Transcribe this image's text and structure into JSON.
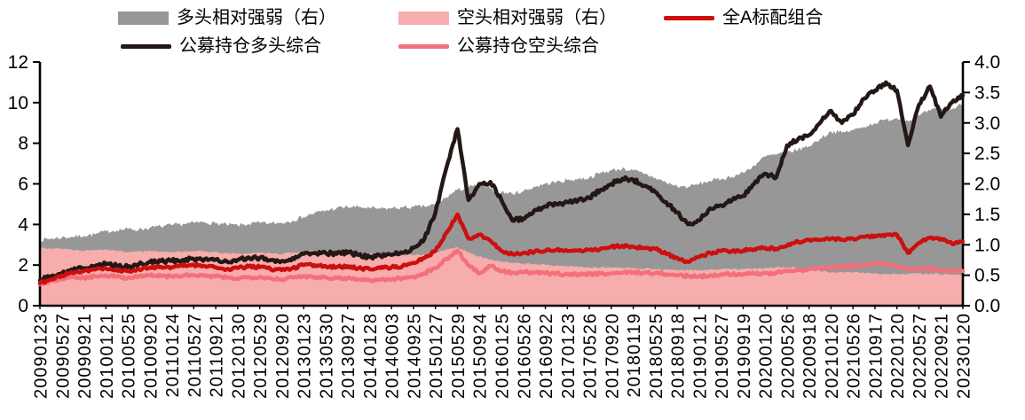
{
  "chart_data": {
    "type": "area+line",
    "title": "",
    "legend": {
      "position": "top",
      "items": [
        {
          "label": "多头相对强弱（右）",
          "swatch": "area",
          "color": "#979797"
        },
        {
          "label": "空头相对强弱（右）",
          "swatch": "area",
          "color": "#F6ADAB"
        },
        {
          "label": "全A标配组合",
          "swatch": "line",
          "color": "#CC0F0F"
        },
        {
          "label": "公募持仓多头综合",
          "swatch": "line",
          "color": "#231815"
        },
        {
          "label": "公募持仓空头综合",
          "swatch": "line",
          "color": "#F3707B"
        }
      ]
    },
    "left_axis": {
      "min": 0,
      "max": 12,
      "ticks": [
        "0",
        "2",
        "4",
        "6",
        "8",
        "10",
        "12"
      ]
    },
    "right_axis": {
      "min": 0,
      "max": 4,
      "ticks": [
        "0.0",
        "0.5",
        "1.0",
        "1.5",
        "2.0",
        "2.5",
        "3.0",
        "3.5",
        "4.0"
      ]
    },
    "x_tick_labels": [
      "20090123",
      "20090527",
      "20090921",
      "20100121",
      "20100525",
      "20100920",
      "20110124",
      "20110527",
      "20110921",
      "20120130",
      "20120529",
      "20120920",
      "20130123",
      "20130530",
      "20130927",
      "20140128",
      "20140603",
      "20140925",
      "20150127",
      "20150529",
      "20150924",
      "20160125",
      "20160526",
      "20160922",
      "20170123",
      "20170526",
      "20170920",
      "20180119",
      "20180525",
      "20180918",
      "20190121",
      "20190527",
      "20190919",
      "20200120",
      "20200526",
      "20200918",
      "20210120",
      "20210526",
      "20210917",
      "20220120",
      "20220527",
      "20220921",
      "20230120"
    ],
    "series": [
      {
        "name": "多头相对强弱（右）",
        "type": "area",
        "axis": "right",
        "color": "#979797",
        "wiggle": 0.035,
        "values": [
          1.08,
          1.1,
          1.12,
          1.13,
          1.15,
          1.17,
          1.22,
          1.24,
          1.26,
          1.25,
          1.28,
          1.3,
          1.32,
          1.34,
          1.36,
          1.37,
          1.35,
          1.33,
          1.32,
          1.34,
          1.36,
          1.35,
          1.36,
          1.4,
          1.46,
          1.52,
          1.56,
          1.6,
          1.62,
          1.62,
          1.6,
          1.59,
          1.6,
          1.61,
          1.62,
          1.63,
          1.66,
          1.78,
          1.9,
          1.94,
          1.98,
          1.92,
          1.86,
          1.84,
          1.88,
          1.95,
          2.0,
          2.03,
          2.06,
          2.08,
          2.1,
          2.18,
          2.22,
          2.25,
          2.22,
          2.16,
          2.1,
          2.02,
          1.96,
          1.95,
          2.0,
          2.05,
          2.08,
          2.12,
          2.18,
          2.3,
          2.45,
          2.48,
          2.52,
          2.56,
          2.62,
          2.74,
          2.86,
          2.84,
          2.88,
          2.94,
          3.0,
          3.05,
          3.08,
          3.03,
          3.12,
          3.2,
          3.24,
          3.22,
          3.32
        ]
      },
      {
        "name": "空头相对强弱（右）",
        "type": "area",
        "axis": "right",
        "color": "#F6ADAB",
        "wiggle": 0.015,
        "values": [
          0.96,
          0.94,
          0.93,
          0.91,
          0.9,
          0.91,
          0.92,
          0.9,
          0.88,
          0.89,
          0.9,
          0.89,
          0.88,
          0.89,
          0.9,
          0.89,
          0.88,
          0.86,
          0.85,
          0.86,
          0.87,
          0.86,
          0.85,
          0.87,
          0.89,
          0.9,
          0.89,
          0.88,
          0.87,
          0.86,
          0.85,
          0.85,
          0.85,
          0.84,
          0.83,
          0.84,
          0.86,
          0.92,
          0.96,
          0.88,
          0.81,
          0.76,
          0.72,
          0.7,
          0.69,
          0.68,
          0.67,
          0.66,
          0.65,
          0.64,
          0.63,
          0.63,
          0.63,
          0.62,
          0.62,
          0.61,
          0.6,
          0.59,
          0.58,
          0.58,
          0.58,
          0.59,
          0.6,
          0.6,
          0.6,
          0.61,
          0.62,
          0.63,
          0.63,
          0.62,
          0.6,
          0.57,
          0.55,
          0.55,
          0.55,
          0.54,
          0.53,
          0.52,
          0.52,
          0.52,
          0.53,
          0.52,
          0.52,
          0.51,
          0.5
        ]
      },
      {
        "name": "公募持仓空头综合",
        "type": "line",
        "axis": "left",
        "color": "#F3707B",
        "width": 4.5,
        "wiggle": 0.07,
        "values": [
          1.05,
          1.22,
          1.32,
          1.42,
          1.38,
          1.45,
          1.5,
          1.42,
          1.38,
          1.45,
          1.5,
          1.46,
          1.44,
          1.48,
          1.5,
          1.46,
          1.44,
          1.38,
          1.35,
          1.4,
          1.42,
          1.35,
          1.3,
          1.38,
          1.45,
          1.42,
          1.4,
          1.36,
          1.36,
          1.3,
          1.25,
          1.28,
          1.3,
          1.35,
          1.42,
          1.6,
          1.85,
          2.3,
          2.72,
          2.0,
          1.6,
          1.95,
          1.7,
          1.62,
          1.65,
          1.62,
          1.6,
          1.58,
          1.55,
          1.55,
          1.55,
          1.58,
          1.6,
          1.63,
          1.65,
          1.62,
          1.6,
          1.55,
          1.5,
          1.46,
          1.44,
          1.5,
          1.55,
          1.55,
          1.55,
          1.58,
          1.6,
          1.62,
          1.7,
          1.75,
          1.8,
          1.85,
          1.9,
          1.92,
          1.95,
          2.0,
          2.05,
          2.05,
          1.95,
          1.8,
          1.8,
          1.85,
          1.75,
          1.72,
          1.7
        ]
      },
      {
        "name": "公募持仓多头综合",
        "type": "line",
        "axis": "left",
        "color": "#231815",
        "width": 4.5,
        "wiggle": 0.1,
        "values": [
          1.25,
          1.45,
          1.6,
          1.75,
          1.85,
          1.95,
          2.05,
          1.95,
          1.9,
          2.05,
          2.15,
          2.2,
          2.2,
          2.25,
          2.3,
          2.3,
          2.28,
          2.18,
          2.25,
          2.38,
          2.35,
          2.25,
          2.2,
          2.35,
          2.55,
          2.6,
          2.6,
          2.55,
          2.6,
          2.5,
          2.4,
          2.45,
          2.5,
          2.6,
          2.85,
          3.3,
          4.6,
          6.8,
          8.7,
          5.2,
          6.0,
          6.1,
          5.2,
          4.2,
          4.3,
          4.7,
          4.9,
          5.0,
          5.1,
          5.2,
          5.3,
          5.7,
          6.0,
          6.25,
          6.2,
          5.9,
          5.6,
          5.1,
          4.6,
          4.0,
          4.2,
          4.8,
          4.95,
          5.2,
          5.4,
          6.0,
          6.5,
          6.3,
          7.9,
          8.2,
          8.4,
          9.0,
          9.6,
          9.0,
          9.4,
          10.2,
          10.6,
          11.0,
          10.6,
          7.9,
          9.9,
          10.8,
          9.3,
          10.0,
          10.35
        ]
      },
      {
        "name": "全A标配组合",
        "type": "line",
        "axis": "left",
        "color": "#CC0F0F",
        "width": 4.5,
        "wiggle": 0.07,
        "values": [
          1.1,
          1.3,
          1.5,
          1.6,
          1.7,
          1.78,
          1.85,
          1.75,
          1.7,
          1.8,
          1.88,
          1.92,
          1.9,
          1.95,
          2.0,
          1.95,
          1.9,
          1.8,
          1.85,
          1.93,
          1.9,
          1.8,
          1.75,
          1.85,
          2.0,
          2.0,
          1.95,
          1.9,
          1.95,
          1.85,
          1.8,
          1.85,
          1.9,
          1.95,
          2.1,
          2.35,
          2.7,
          3.6,
          4.5,
          3.3,
          3.5,
          3.2,
          2.7,
          2.55,
          2.6,
          2.65,
          2.7,
          2.75,
          2.7,
          2.72,
          2.75,
          2.8,
          2.9,
          2.95,
          2.9,
          2.85,
          2.8,
          2.55,
          2.35,
          2.15,
          2.4,
          2.6,
          2.7,
          2.7,
          2.72,
          2.78,
          2.85,
          2.8,
          2.95,
          3.15,
          3.25,
          3.25,
          3.3,
          3.25,
          3.3,
          3.4,
          3.45,
          3.5,
          3.5,
          2.6,
          3.1,
          3.35,
          3.3,
          3.05,
          3.15
        ]
      }
    ]
  }
}
